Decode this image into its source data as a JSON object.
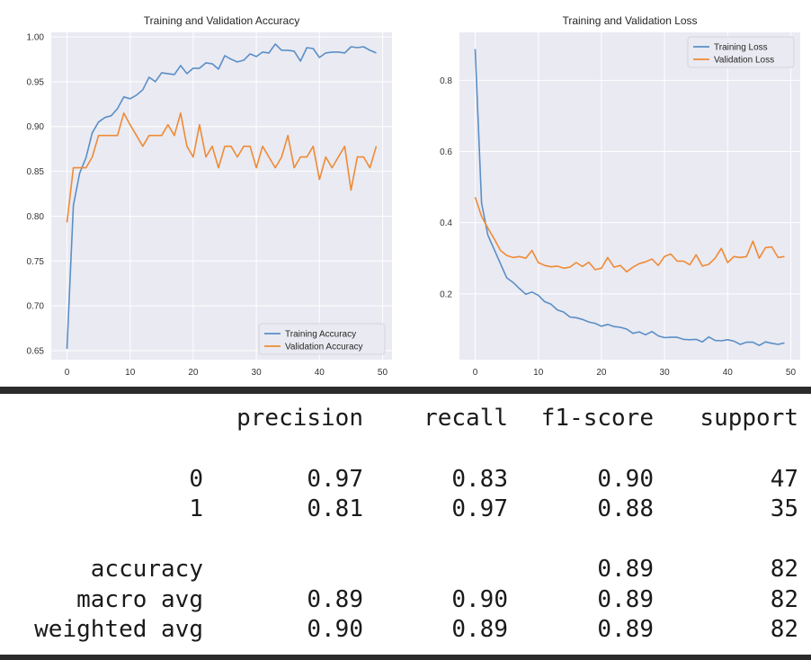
{
  "chart_data": [
    {
      "type": "line",
      "title": "Training and Validation Accuracy",
      "xlabel": "",
      "ylabel": "",
      "xlim": [
        -2.5,
        51.5
      ],
      "ylim": [
        0.64,
        1.005
      ],
      "xticks": [
        0,
        10,
        20,
        30,
        40,
        50
      ],
      "yticks": [
        0.65,
        0.7,
        0.75,
        0.8,
        0.85,
        0.9,
        0.95,
        1.0
      ],
      "xtick_labels": [
        "0",
        "10",
        "20",
        "30",
        "40",
        "50"
      ],
      "ytick_labels": [
        "0.65",
        "0.70",
        "0.75",
        "0.80",
        "0.85",
        "0.90",
        "0.95",
        "1.00"
      ],
      "grid": true,
      "legend_position": "bottom-right",
      "series": [
        {
          "name": "Training Accuracy",
          "color": "#5a8fc6",
          "x": [
            0,
            1,
            2,
            3,
            4,
            5,
            6,
            7,
            8,
            9,
            10,
            11,
            12,
            13,
            14,
            15,
            16,
            17,
            18,
            19,
            20,
            21,
            22,
            23,
            24,
            25,
            26,
            27,
            28,
            29,
            30,
            31,
            32,
            33,
            34,
            35,
            36,
            37,
            38,
            39,
            40,
            41,
            42,
            43,
            44,
            45,
            46,
            47,
            48,
            49
          ],
          "values": [
            0.652,
            0.812,
            0.848,
            0.865,
            0.893,
            0.905,
            0.91,
            0.912,
            0.92,
            0.933,
            0.931,
            0.935,
            0.941,
            0.955,
            0.95,
            0.96,
            0.959,
            0.958,
            0.968,
            0.959,
            0.965,
            0.965,
            0.971,
            0.97,
            0.964,
            0.979,
            0.975,
            0.972,
            0.974,
            0.981,
            0.978,
            0.983,
            0.982,
            0.992,
            0.985,
            0.985,
            0.984,
            0.973,
            0.988,
            0.987,
            0.977,
            0.982,
            0.983,
            0.983,
            0.982,
            0.989,
            0.988,
            0.989,
            0.985,
            0.982
          ]
        },
        {
          "name": "Validation Accuracy",
          "color": "#ee8b35",
          "x": [
            0,
            1,
            2,
            3,
            4,
            5,
            6,
            7,
            8,
            9,
            10,
            11,
            12,
            13,
            14,
            15,
            16,
            17,
            18,
            19,
            20,
            21,
            22,
            23,
            24,
            25,
            26,
            27,
            28,
            29,
            30,
            31,
            32,
            33,
            34,
            35,
            36,
            37,
            38,
            39,
            40,
            41,
            42,
            43,
            44,
            45,
            46,
            47,
            48,
            49
          ],
          "values": [
            0.793,
            0.854,
            0.854,
            0.854,
            0.866,
            0.89,
            0.89,
            0.89,
            0.89,
            0.915,
            0.902,
            0.89,
            0.878,
            0.89,
            0.89,
            0.89,
            0.902,
            0.89,
            0.915,
            0.878,
            0.866,
            0.902,
            0.866,
            0.878,
            0.854,
            0.878,
            0.878,
            0.866,
            0.878,
            0.878,
            0.854,
            0.878,
            0.866,
            0.854,
            0.866,
            0.89,
            0.854,
            0.866,
            0.866,
            0.878,
            0.841,
            0.866,
            0.854,
            0.866,
            0.878,
            0.829,
            0.866,
            0.866,
            0.854,
            0.878
          ]
        }
      ]
    },
    {
      "type": "line",
      "title": "Training and Validation Loss",
      "xlabel": "",
      "ylabel": "",
      "xlim": [
        -2.5,
        51.5
      ],
      "ylim": [
        0.015,
        0.935
      ],
      "xticks": [
        0,
        10,
        20,
        30,
        40,
        50
      ],
      "yticks": [
        0.2,
        0.4,
        0.6,
        0.8
      ],
      "xtick_labels": [
        "0",
        "10",
        "20",
        "30",
        "40",
        "50"
      ],
      "ytick_labels": [
        "0.2",
        "0.4",
        "0.6",
        "0.8"
      ],
      "grid": true,
      "legend_position": "top-right",
      "series": [
        {
          "name": "Training Loss",
          "color": "#5a8fc6",
          "x": [
            0,
            1,
            2,
            3,
            4,
            5,
            6,
            7,
            8,
            9,
            10,
            11,
            12,
            13,
            14,
            15,
            16,
            17,
            18,
            19,
            20,
            21,
            22,
            23,
            24,
            25,
            26,
            27,
            28,
            29,
            30,
            31,
            32,
            33,
            34,
            35,
            36,
            37,
            38,
            39,
            40,
            41,
            42,
            43,
            44,
            45,
            46,
            47,
            48,
            49
          ],
          "values": [
            0.888,
            0.455,
            0.365,
            0.325,
            0.285,
            0.245,
            0.232,
            0.215,
            0.199,
            0.205,
            0.196,
            0.178,
            0.171,
            0.155,
            0.149,
            0.135,
            0.133,
            0.128,
            0.121,
            0.117,
            0.109,
            0.114,
            0.108,
            0.106,
            0.101,
            0.089,
            0.093,
            0.085,
            0.094,
            0.082,
            0.077,
            0.078,
            0.078,
            0.072,
            0.071,
            0.072,
            0.065,
            0.079,
            0.069,
            0.068,
            0.071,
            0.067,
            0.058,
            0.064,
            0.064,
            0.055,
            0.065,
            0.061,
            0.058,
            0.062
          ]
        },
        {
          "name": "Validation Loss",
          "color": "#ee8b35",
          "x": [
            0,
            1,
            2,
            3,
            4,
            5,
            6,
            7,
            8,
            9,
            10,
            11,
            12,
            13,
            14,
            15,
            16,
            17,
            18,
            19,
            20,
            21,
            22,
            23,
            24,
            25,
            26,
            27,
            28,
            29,
            30,
            31,
            32,
            33,
            34,
            35,
            36,
            37,
            38,
            39,
            40,
            41,
            42,
            43,
            44,
            45,
            46,
            47,
            48,
            49
          ],
          "values": [
            0.472,
            0.418,
            0.385,
            0.355,
            0.322,
            0.308,
            0.302,
            0.305,
            0.3,
            0.322,
            0.288,
            0.28,
            0.276,
            0.278,
            0.272,
            0.275,
            0.288,
            0.277,
            0.289,
            0.268,
            0.272,
            0.302,
            0.275,
            0.28,
            0.262,
            0.275,
            0.285,
            0.29,
            0.298,
            0.28,
            0.305,
            0.312,
            0.292,
            0.292,
            0.282,
            0.31,
            0.278,
            0.283,
            0.3,
            0.328,
            0.288,
            0.305,
            0.302,
            0.305,
            0.348,
            0.3,
            0.33,
            0.332,
            0.302,
            0.305
          ]
        }
      ]
    }
  ],
  "report": {
    "headers": [
      "precision",
      "recall",
      "f1-score",
      "support"
    ],
    "rows": [
      {
        "label": "0",
        "precision": "0.97",
        "recall": "0.83",
        "f1": "0.90",
        "support": "47"
      },
      {
        "label": "1",
        "precision": "0.81",
        "recall": "0.97",
        "f1": "0.88",
        "support": "35"
      },
      {
        "label": "accuracy",
        "precision": "",
        "recall": "",
        "f1": "0.89",
        "support": "82"
      },
      {
        "label": "macro avg",
        "precision": "0.89",
        "recall": "0.90",
        "f1": "0.89",
        "support": "82"
      },
      {
        "label": "weighted avg",
        "precision": "0.90",
        "recall": "0.89",
        "f1": "0.89",
        "support": "82"
      }
    ]
  },
  "colors": {
    "plot_background": "#eaeaf2",
    "grid": "#ffffff",
    "training": "#5a8fc6",
    "validation": "#ee8b35"
  }
}
